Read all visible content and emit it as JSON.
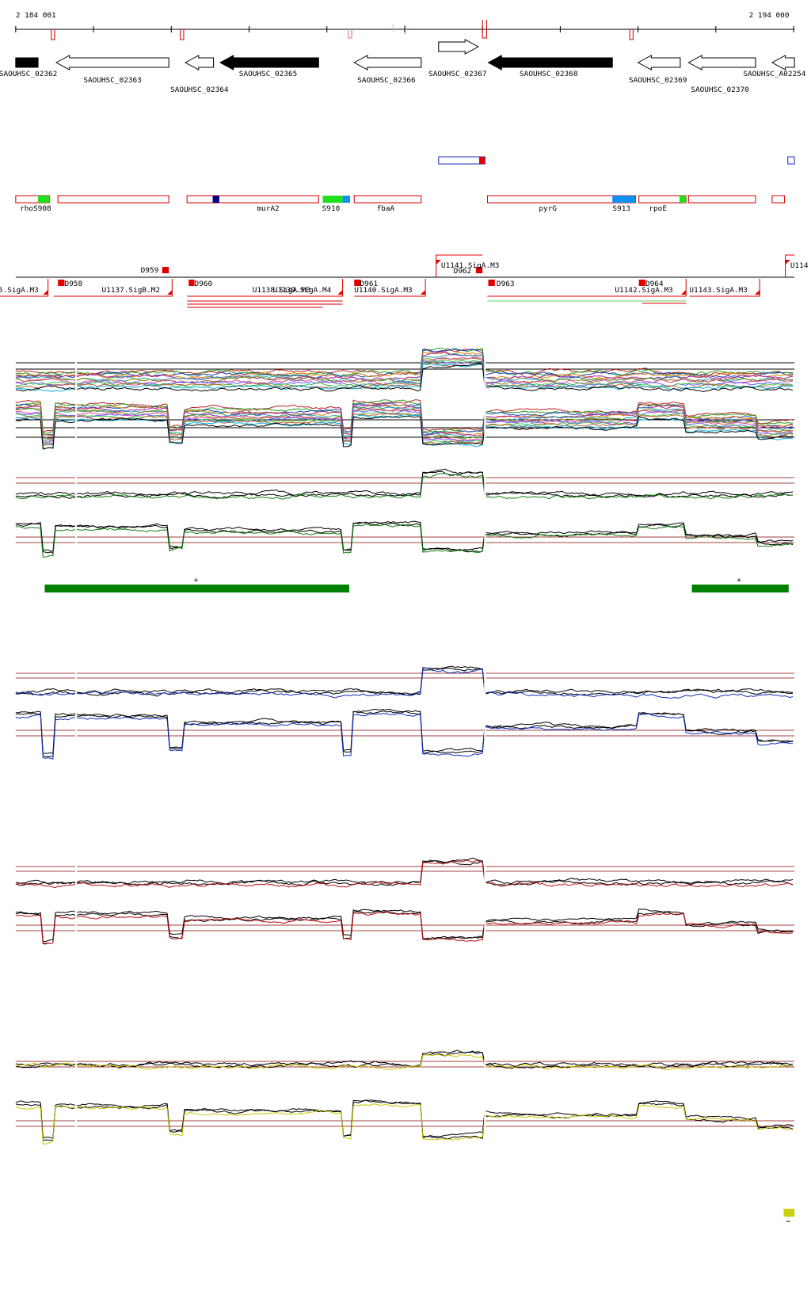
{
  "ruler": {
    "start": "2 184 001",
    "end": "2 194 000"
  },
  "genes": [
    "SAOUHSC_02362",
    "SAOUHSC_02363",
    "SAOUHSC_02364",
    "SAOUHSC_02365",
    "SAOUHSC_02366",
    "SAOUHSC_02367",
    "SAOUHSC_02368",
    "SAOUHSC_02369",
    "SAOUHSC_02370",
    "SAOUHSC_A02254"
  ],
  "features": [
    "rhoS908",
    "murA2",
    "S910",
    "fbaA",
    "pyrG",
    "S913",
    "rpoE"
  ],
  "regulation": [
    "5.SigA.M3",
    "D958",
    "U1137.SigB.M2",
    "D959",
    "D960",
    "U1138.SigA.M3",
    "U1139.SigA.M4",
    "D961",
    "U1140.SigA.M3",
    "U1141.SigA.M3",
    "D962",
    "D963",
    "D964",
    "U1142.SigA.M3",
    "U1143.SigA.M3",
    "U114"
  ],
  "segments": [
    "+",
    "+"
  ]
}
